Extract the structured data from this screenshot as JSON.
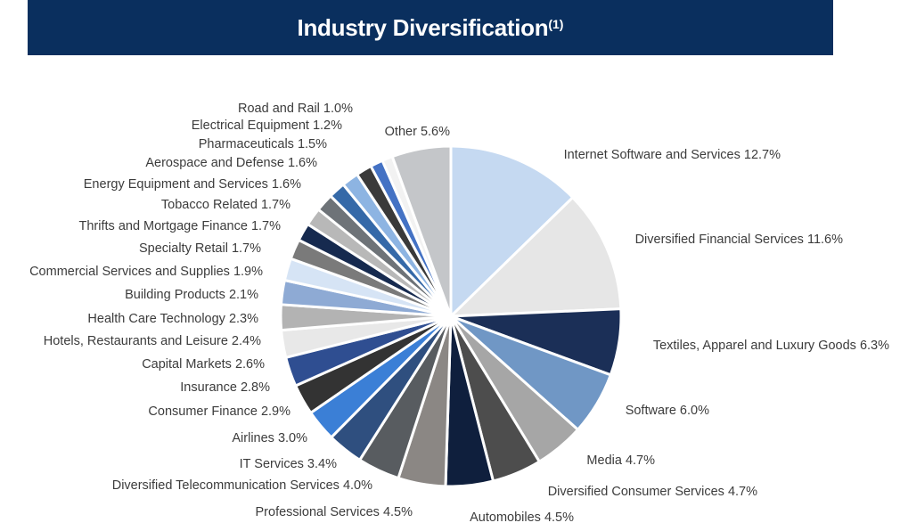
{
  "chart_data": {
    "type": "pie",
    "title": "Industry Diversification",
    "title_footnote": "(1)",
    "slices": [
      {
        "label": "Internet Software and Services",
        "value": 12.7,
        "display": "12.7%",
        "color": "#c5d9f1"
      },
      {
        "label": "Diversified Financial Services",
        "value": 11.6,
        "display": "11.6%",
        "color": "#e6e6e6"
      },
      {
        "label": "Textiles, Apparel and Luxury Goods",
        "value": 6.3,
        "display": "6.3%",
        "color": "#1b2f57"
      },
      {
        "label": "Software",
        "value": 6.0,
        "display": "6.0%",
        "color": "#7097c5"
      },
      {
        "label": "Media",
        "value": 4.7,
        "display": "4.7%",
        "color": "#a6a6a6"
      },
      {
        "label": "Diversified Consumer Services",
        "value": 4.7,
        "display": "4.7%",
        "color": "#4d4d4d"
      },
      {
        "label": "Automobiles",
        "value": 4.5,
        "display": "4.5%",
        "color": "#0f1f3d"
      },
      {
        "label": "Professional Services",
        "value": 4.5,
        "display": "4.5%",
        "color": "#8b8784"
      },
      {
        "label": "Diversified Telecommunication Services",
        "value": 4.0,
        "display": "4.0%",
        "color": "#585c60"
      },
      {
        "label": "IT Services",
        "value": 3.4,
        "display": "3.4%",
        "color": "#2f4f7f"
      },
      {
        "label": "Airlines",
        "value": 3.0,
        "display": "3.0%",
        "color": "#3b7fd6"
      },
      {
        "label": "Consumer Finance",
        "value": 2.9,
        "display": "2.9%",
        "color": "#333333"
      },
      {
        "label": "Insurance",
        "value": 2.8,
        "display": "2.8%",
        "color": "#2f4e91"
      },
      {
        "label": "Capital Markets",
        "value": 2.6,
        "display": "2.6%",
        "color": "#e8e8e8"
      },
      {
        "label": "Hotels, Restaurants and Leisure",
        "value": 2.4,
        "display": "2.4%",
        "color": "#b3b3b3"
      },
      {
        "label": "Health Care Technology",
        "value": 2.3,
        "display": "2.3%",
        "color": "#8eaad4"
      },
      {
        "label": "Building Products",
        "value": 2.1,
        "display": "2.1%",
        "color": "#d6e4f5"
      },
      {
        "label": "Commercial Services and Supplies",
        "value": 1.9,
        "display": "1.9%",
        "color": "#7a7a7a"
      },
      {
        "label": "Specialty Retail",
        "value": 1.7,
        "display": "1.7%",
        "color": "#162a4f"
      },
      {
        "label": "Thrifts and Mortgage Finance",
        "value": 1.7,
        "display": "1.7%",
        "color": "#b8b8b8"
      },
      {
        "label": "Tobacco Related",
        "value": 1.7,
        "display": "1.7%",
        "color": "#6e7378"
      },
      {
        "label": "Energy Equipment and Services",
        "value": 1.6,
        "display": "1.6%",
        "color": "#3569a8"
      },
      {
        "label": "Aerospace and Defense",
        "value": 1.6,
        "display": "1.6%",
        "color": "#8db4e2"
      },
      {
        "label": "Pharmaceuticals",
        "value": 1.5,
        "display": "1.5%",
        "color": "#3a3a3a"
      },
      {
        "label": "Electrical Equipment",
        "value": 1.2,
        "display": "1.2%",
        "color": "#4472c4"
      },
      {
        "label": "Road and Rail",
        "value": 1.0,
        "display": "1.0%",
        "color": "#f2f2f2"
      },
      {
        "label": "Other",
        "value": 5.6,
        "display": "5.6%",
        "color": "#c4c6c9"
      }
    ]
  }
}
